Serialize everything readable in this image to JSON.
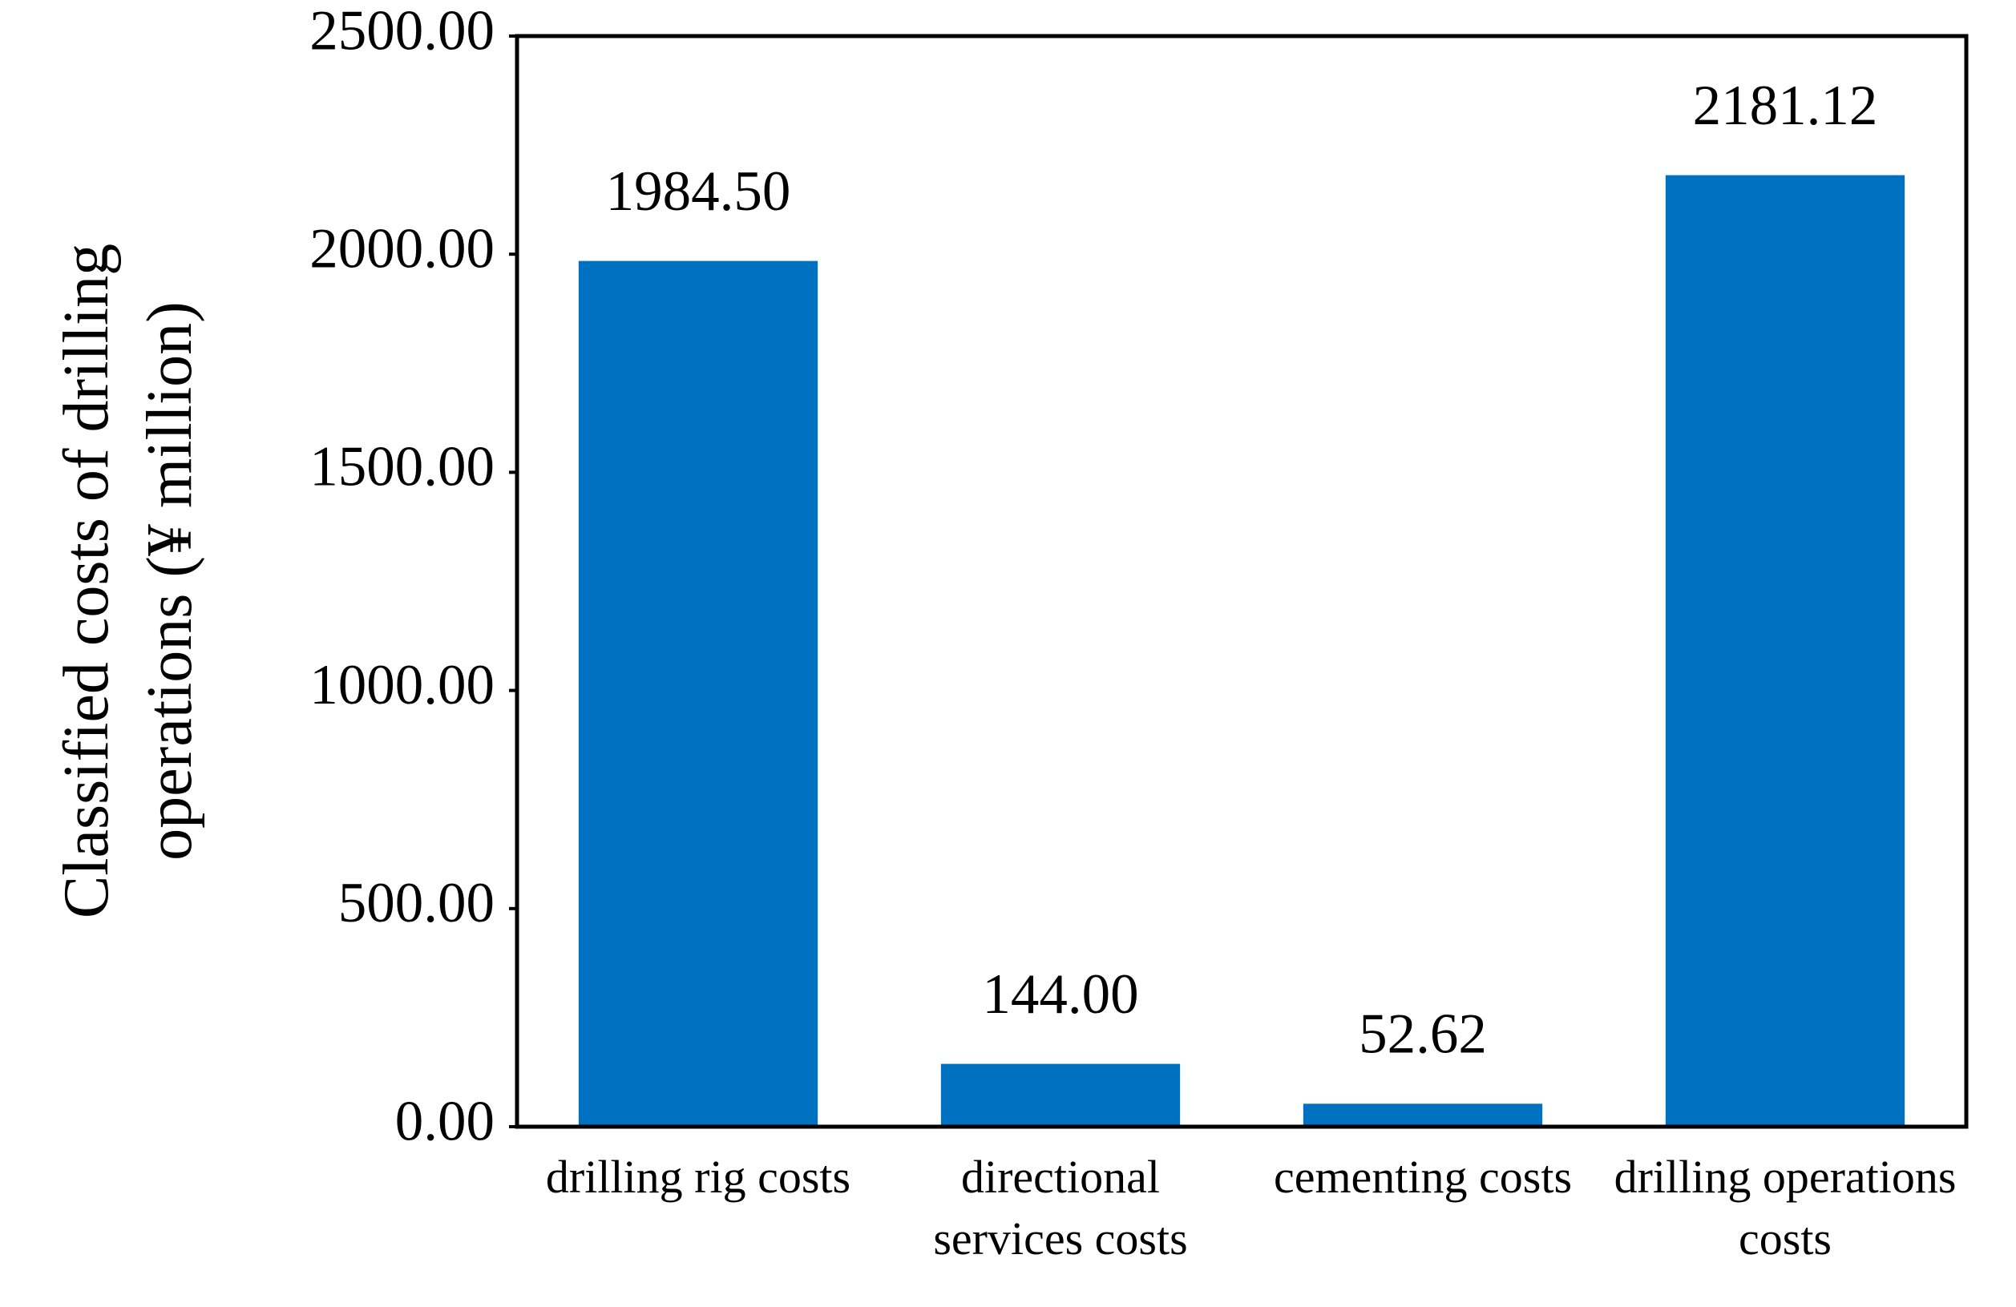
{
  "chart_data": {
    "type": "bar",
    "y_label": "Classified costs of drilling operations (¥ million)",
    "categories": [
      "drilling rig costs",
      "directional services costs",
      "cementing costs",
      "drilling operations costs"
    ],
    "values": [
      1984.5,
      144,
      52.62,
      2181.12
    ],
    "value_labels": [
      "1984.50",
      "144.00",
      "52.62",
      "2181.12"
    ],
    "color": "#0070c0",
    "ylim": [
      0,
      2500
    ],
    "yticks": [
      {
        "value": 0,
        "label": "0.00"
      },
      {
        "value": 500,
        "label": "500.00"
      },
      {
        "value": 1000,
        "label": "1000.00"
      },
      {
        "value": 1500,
        "label": "1500.00"
      },
      {
        "value": 2000,
        "label": "2000.00"
      },
      {
        "value": 2500,
        "label": "2500.00"
      }
    ],
    "grid": false
  }
}
